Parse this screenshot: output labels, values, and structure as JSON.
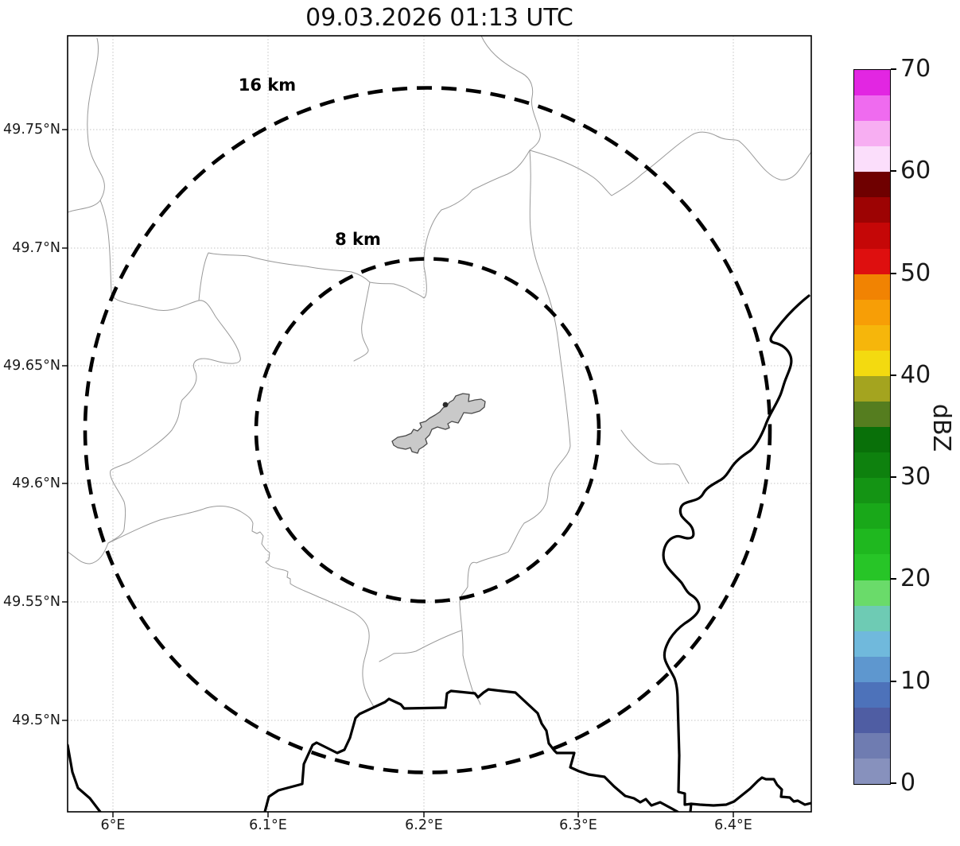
{
  "title": "09.03.2026 01:13 UTC",
  "map": {
    "x_axis": {
      "ticks": [
        "6°E",
        "6.1°E",
        "6.2°E",
        "6.3°E",
        "6.4°E"
      ]
    },
    "y_axis": {
      "ticks": [
        "49.75°N",
        "49.7°N",
        "49.65°N",
        "49.6°N",
        "49.55°N",
        "49.5°N"
      ]
    },
    "range_rings": [
      {
        "label": "16 km",
        "radius_km": 16
      },
      {
        "label": "8 km",
        "radius_km": 8
      }
    ],
    "features": {
      "airport_fill_color": "#c9c9c9",
      "country_border_color": "#000000",
      "admin_boundary_color": "#999999"
    }
  },
  "colorbar": {
    "label": "dBZ",
    "min": 0,
    "max": 70,
    "step_dbz": 2.5,
    "ticks": [
      0,
      10,
      20,
      30,
      40,
      50,
      60,
      70
    ],
    "colors_low_to_high": [
      "#8791bd",
      "#6f7cb1",
      "#4f5da3",
      "#4d72ba",
      "#5e97cf",
      "#70b9dc",
      "#6ecbb4",
      "#6adb6a",
      "#27c527",
      "#1fb81f",
      "#19a819",
      "#149414",
      "#0e810e",
      "#097009",
      "#557d1f",
      "#a4a41f",
      "#f3da10",
      "#f6b60b",
      "#f79e06",
      "#f18302",
      "#de0f0f",
      "#c50707",
      "#9d0303",
      "#6f0000",
      "#fbdefb",
      "#f7aef2",
      "#ef6bef",
      "#e226e2"
    ]
  }
}
